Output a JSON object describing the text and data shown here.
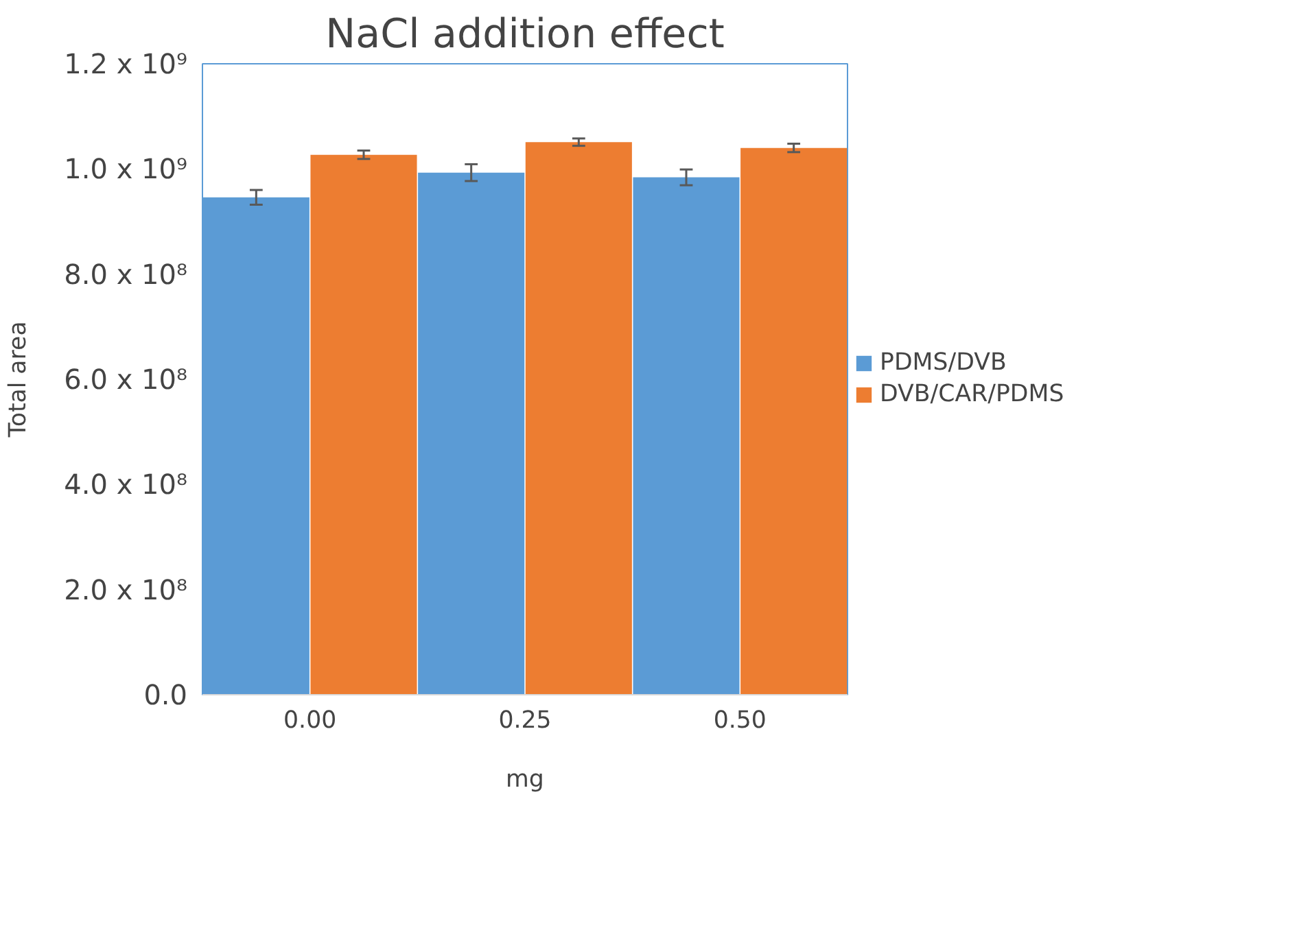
{
  "chart_data": {
    "type": "bar",
    "title": "NaCl addition effect",
    "xlabel": "mg",
    "ylabel": "Total area",
    "categories": [
      "0.00",
      "0.25",
      "0.50"
    ],
    "series": [
      {
        "name": "PDMS/DVB",
        "color": "#5b9bd5",
        "values": [
          946000000,
          993000000,
          984000000
        ],
        "errors": [
          14000000,
          16000000,
          15000000
        ]
      },
      {
        "name": "DVB/CAR/PDMS",
        "color": "#ed7d31",
        "values": [
          1027000000,
          1051000000,
          1040000000
        ],
        "errors": [
          8000000,
          7000000,
          8000000
        ]
      }
    ],
    "ylim": [
      0,
      1200000000
    ],
    "yticks": [
      {
        "value": 0,
        "label": "0.0"
      },
      {
        "value": 200000000,
        "label": "2.0 x 10⁸"
      },
      {
        "value": 400000000,
        "label": "4.0 x 10⁸"
      },
      {
        "value": 600000000,
        "label": "6.0 x 10⁸"
      },
      {
        "value": 800000000,
        "label": "8.0 x 10⁸"
      },
      {
        "value": 1000000000,
        "label": "1.0 x 10⁹"
      },
      {
        "value": 1200000000,
        "label": "1.2 x 10⁹"
      }
    ],
    "grid": false,
    "legend": "right"
  }
}
